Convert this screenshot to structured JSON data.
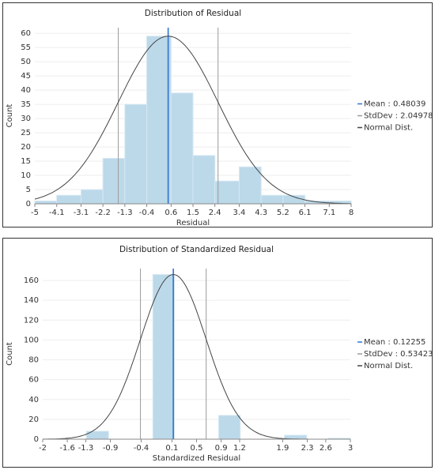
{
  "chart_data": [
    {
      "type": "histogram",
      "title": "Distribution of Residual",
      "x_label": "Residual",
      "y_label": "Count",
      "bins": [
        -5,
        -4.1,
        -3.1,
        -2.2,
        -1.3,
        -0.4,
        0.6,
        1.5,
        2.4,
        3.4,
        4.3,
        5.2,
        6.1,
        7.1,
        8
      ],
      "counts": [
        1,
        3,
        5,
        16,
        35,
        59,
        39,
        17,
        8,
        13,
        3,
        3,
        1,
        1
      ],
      "xlim": [
        -5,
        8
      ],
      "xticks": [
        -5,
        -4.1,
        -3.1,
        -2.2,
        -1.3,
        -0.4,
        0.6,
        1.5,
        2.4,
        3.4,
        4.3,
        5.2,
        6.1,
        7.1,
        8
      ],
      "ylim": [
        0,
        62
      ],
      "yticks": [
        0,
        5,
        10,
        15,
        20,
        25,
        30,
        35,
        40,
        45,
        50,
        55,
        60
      ],
      "mean": 0.48039,
      "stddev": 2.04978,
      "normal_peak": 59,
      "legend": [
        "Mean : 0.48039",
        "StdDev : 2.04978",
        "Normal Dist."
      ],
      "color": "#bcd9ea",
      "mean_color": "#2f74d0",
      "stddev_color": "#9a9a9a",
      "curve_color": "#444444",
      "grid": true
    },
    {
      "type": "histogram",
      "title": "Distribution of Standardized Residual",
      "x_label": "Standardized Residual",
      "y_label": "Count",
      "bins": [
        -2,
        -1.64,
        -1.29,
        -0.93,
        -0.57,
        -0.21,
        0.14,
        0.5,
        0.86,
        1.21,
        1.57,
        1.93,
        2.29,
        2.64,
        3
      ],
      "counts": [
        0,
        0,
        8,
        0,
        0,
        166,
        0,
        0,
        24,
        0,
        0,
        4,
        0,
        1
      ],
      "xlim": [
        -2,
        3
      ],
      "xticks": [
        -2,
        -1.6,
        -1.3,
        -0.9,
        -0.4,
        0.1,
        0.5,
        0.9,
        1.2,
        1.9,
        2.3,
        2.6,
        3
      ],
      "ylim": [
        0,
        172
      ],
      "yticks": [
        0,
        20,
        40,
        60,
        80,
        100,
        120,
        140,
        160
      ],
      "mean": 0.12255,
      "stddev": 0.53423,
      "normal_peak": 166,
      "legend": [
        "Mean : 0.12255",
        "StdDev : 0.53423",
        "Normal Dist."
      ],
      "color": "#bcd9ea",
      "mean_color": "#2f74d0",
      "stddev_color": "#9a9a9a",
      "curve_color": "#444444",
      "grid": true
    }
  ]
}
